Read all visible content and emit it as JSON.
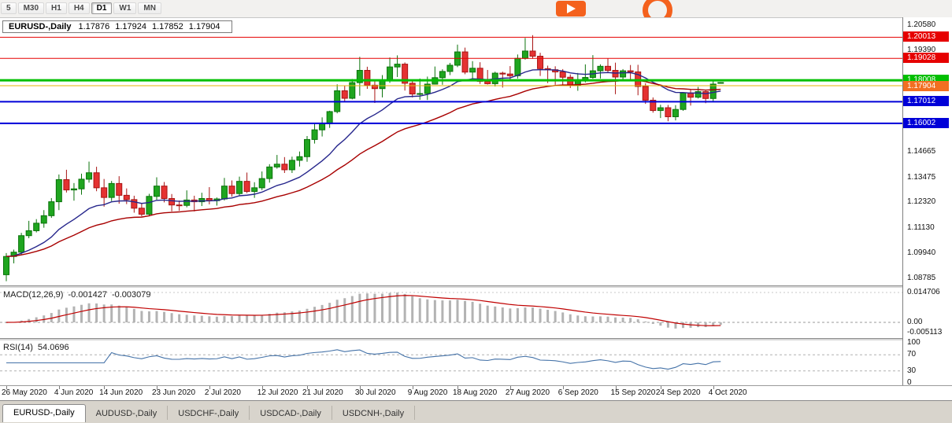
{
  "toolbar": {
    "timeframes": [
      {
        "label": "5",
        "active": false
      },
      {
        "label": "M30",
        "active": false
      },
      {
        "label": "H1",
        "active": false
      },
      {
        "label": "H4",
        "active": false
      },
      {
        "label": "D1",
        "active": true
      },
      {
        "label": "W1",
        "active": false
      },
      {
        "label": "MN",
        "active": false
      }
    ]
  },
  "tabs": [
    {
      "label": "EURUSD-,Daily",
      "active": true
    },
    {
      "label": "AUDUSD-,Daily",
      "active": false
    },
    {
      "label": "USDCHF-,Daily",
      "active": false
    },
    {
      "label": "USDCAD-,Daily",
      "active": false
    },
    {
      "label": "USDCNH-,Daily",
      "active": false
    }
  ],
  "chart_data": {
    "type": "candlestick",
    "symbol_title": "EURUSD-,Daily",
    "info": {
      "open": "1.17876",
      "high": "1.17924",
      "low": "1.17852",
      "close": "1.17904"
    },
    "colors": {
      "candle_up": "#1fa51f",
      "candle_up_dark": "#0b730b",
      "candle_down": "#e53232",
      "candle_down_dark": "#a81414",
      "ma_fast": "#26268c",
      "ma_slow": "#a80000",
      "resistance": "#e60000",
      "support": "#0000d8",
      "pivot": "#00bf00",
      "bid_line": "#e3b505",
      "bid_tag": "#f26f21",
      "macd_hist": "#b3b3b3",
      "macd_signal": "#c00000",
      "rsi_line": "#4472a8"
    },
    "x_labels": [
      "26 May 2020",
      "4 Jun 2020",
      "14 Jun 2020",
      "23 Jun 2020",
      "2 Jul 2020",
      "12 Jul 2020",
      "21 Jul 2020",
      "30 Jul 2020",
      "9 Aug 2020",
      "18 Aug 2020",
      "27 Aug 2020",
      "6 Sep 2020",
      "15 Sep 2020",
      "24 Sep 2020",
      "4 Oct 2020"
    ],
    "price_axis_labels": [
      {
        "text": "1.20580",
        "price": 1.2058
      },
      {
        "text": "1.19390",
        "price": 1.1939
      },
      {
        "text": "1.14665",
        "price": 1.14665
      },
      {
        "text": "1.13475",
        "price": 1.13475
      },
      {
        "text": "1.12320",
        "price": 1.1232
      },
      {
        "text": "1.11130",
        "price": 1.1113
      },
      {
        "text": "1.09940",
        "price": 1.0994
      },
      {
        "text": "1.08785",
        "price": 1.08785
      }
    ],
    "levels": [
      {
        "name": "resistance-1",
        "label": "1.20013",
        "price": 1.20013,
        "color": "#e60000",
        "width": 1
      },
      {
        "name": "resistance-2",
        "label": "1.19028",
        "price": 1.19028,
        "color": "#e60000",
        "width": 1
      },
      {
        "name": "pivot",
        "label": "1.18008",
        "price": 1.18008,
        "color": "#00bf00",
        "width": 3
      },
      {
        "name": "support-1",
        "label": "1.17012",
        "price": 1.17012,
        "color": "#0000d8",
        "width": 2
      },
      {
        "name": "support-2",
        "label": "1.16002",
        "price": 1.16002,
        "color": "#0000d8",
        "width": 2
      }
    ],
    "bid": {
      "label": "1.17904",
      "price": 1.17904
    },
    "moving_averages": [
      {
        "name": "ma-fast",
        "period": 14,
        "color": "#26268c"
      },
      {
        "name": "ma-slow",
        "period": 30,
        "color": "#a80000"
      }
    ],
    "macd": {
      "label": "MACD(12,26,9)",
      "main_text": "-0.001427",
      "signal_text": "-0.003079",
      "axis": [
        {
          "text": "0.014706",
          "value": 0.014706
        },
        {
          "text": "0.00",
          "value": 0
        },
        {
          "text": "-0.005113",
          "value": -0.005113
        }
      ]
    },
    "rsi": {
      "label": "RSI(14)",
      "value_text": "54.0696",
      "levels": [
        70,
        30
      ],
      "axis": [
        {
          "text": "100",
          "value": 100
        },
        {
          "text": "70",
          "value": 70
        },
        {
          "text": "30",
          "value": 30
        },
        {
          "text": "0",
          "value": 0
        }
      ]
    },
    "candles": [
      [
        1.0895,
        1.0996,
        1.0865,
        1.098
      ],
      [
        1.098,
        1.1012,
        1.0948,
        1.1
      ],
      [
        1.1,
        1.109,
        1.0988,
        1.1077
      ],
      [
        1.1077,
        1.1146,
        1.1065,
        1.11
      ],
      [
        1.11,
        1.1154,
        1.1092,
        1.1135
      ],
      [
        1.1135,
        1.1196,
        1.1114,
        1.117
      ],
      [
        1.117,
        1.1252,
        1.116,
        1.1235
      ],
      [
        1.1235,
        1.1362,
        1.1196,
        1.1338
      ],
      [
        1.1338,
        1.1384,
        1.1278,
        1.129
      ],
      [
        1.129,
        1.1322,
        1.124,
        1.1295
      ],
      [
        1.1295,
        1.1366,
        1.1268,
        1.134
      ],
      [
        1.134,
        1.1422,
        1.1324,
        1.137
      ],
      [
        1.137,
        1.1398,
        1.1284,
        1.13
      ],
      [
        1.13,
        1.1341,
        1.1212,
        1.1255
      ],
      [
        1.1255,
        1.1332,
        1.1238,
        1.132
      ],
      [
        1.132,
        1.1354,
        1.1226,
        1.1265
      ],
      [
        1.1265,
        1.1297,
        1.1224,
        1.1245
      ],
      [
        1.1245,
        1.1263,
        1.1184,
        1.1205
      ],
      [
        1.1205,
        1.1226,
        1.1167,
        1.1177
      ],
      [
        1.1177,
        1.1272,
        1.1167,
        1.126
      ],
      [
        1.126,
        1.1349,
        1.1244,
        1.1308
      ],
      [
        1.1308,
        1.1327,
        1.1232,
        1.125
      ],
      [
        1.125,
        1.1271,
        1.119,
        1.122
      ],
      [
        1.122,
        1.1241,
        1.1193,
        1.1218
      ],
      [
        1.1218,
        1.1288,
        1.1209,
        1.1243
      ],
      [
        1.1243,
        1.1263,
        1.119,
        1.1235
      ],
      [
        1.1235,
        1.1277,
        1.1215,
        1.125
      ],
      [
        1.125,
        1.1303,
        1.1223,
        1.124
      ],
      [
        1.124,
        1.1255,
        1.1217,
        1.1248
      ],
      [
        1.1248,
        1.1346,
        1.1241,
        1.1308
      ],
      [
        1.1308,
        1.1334,
        1.1258,
        1.1273
      ],
      [
        1.1273,
        1.1352,
        1.1264,
        1.133
      ],
      [
        1.133,
        1.1371,
        1.1275,
        1.1283
      ],
      [
        1.1283,
        1.1326,
        1.1253,
        1.13
      ],
      [
        1.13,
        1.1376,
        1.1289,
        1.1343
      ],
      [
        1.1343,
        1.141,
        1.1324,
        1.1397
      ],
      [
        1.1397,
        1.1453,
        1.1389,
        1.141
      ],
      [
        1.141,
        1.1443,
        1.1369,
        1.1384
      ],
      [
        1.1384,
        1.1445,
        1.1369,
        1.1428
      ],
      [
        1.1428,
        1.1469,
        1.1399,
        1.1445
      ],
      [
        1.1445,
        1.1541,
        1.1421,
        1.1525
      ],
      [
        1.1525,
        1.1602,
        1.1506,
        1.157
      ],
      [
        1.157,
        1.1628,
        1.1539,
        1.1598
      ],
      [
        1.1598,
        1.1659,
        1.1579,
        1.1655
      ],
      [
        1.1655,
        1.1782,
        1.1647,
        1.1752
      ],
      [
        1.1752,
        1.1774,
        1.1699,
        1.1717
      ],
      [
        1.1717,
        1.1807,
        1.1712,
        1.179
      ],
      [
        1.179,
        1.191,
        1.1729,
        1.1847
      ],
      [
        1.1847,
        1.1864,
        1.1761,
        1.1778
      ],
      [
        1.1778,
        1.1798,
        1.1695,
        1.1762
      ],
      [
        1.1762,
        1.1825,
        1.1721,
        1.1802
      ],
      [
        1.1802,
        1.1907,
        1.1789,
        1.1863
      ],
      [
        1.1863,
        1.1917,
        1.1816,
        1.1876
      ],
      [
        1.1876,
        1.1884,
        1.1753,
        1.1787
      ],
      [
        1.1787,
        1.1799,
        1.1721,
        1.1737
      ],
      [
        1.1737,
        1.1809,
        1.171,
        1.1739
      ],
      [
        1.1739,
        1.1818,
        1.1709,
        1.1783
      ],
      [
        1.1783,
        1.1865,
        1.1781,
        1.1813
      ],
      [
        1.1813,
        1.1852,
        1.178,
        1.1842
      ],
      [
        1.1842,
        1.1882,
        1.1825,
        1.1871
      ],
      [
        1.1871,
        1.1967,
        1.1862,
        1.1933
      ],
      [
        1.1933,
        1.1953,
        1.1829,
        1.1839
      ],
      [
        1.1839,
        1.189,
        1.1804,
        1.1857
      ],
      [
        1.1857,
        1.1885,
        1.1784,
        1.1796
      ],
      [
        1.1796,
        1.1849,
        1.1781,
        1.1785
      ],
      [
        1.1785,
        1.1841,
        1.1772,
        1.1834
      ],
      [
        1.1834,
        1.1841,
        1.1767,
        1.183
      ],
      [
        1.183,
        1.1867,
        1.1799,
        1.1822
      ],
      [
        1.1822,
        1.1921,
        1.1809,
        1.1903
      ],
      [
        1.1903,
        1.1998,
        1.1897,
        1.1937
      ],
      [
        1.1937,
        1.2011,
        1.1901,
        1.1913
      ],
      [
        1.1913,
        1.1929,
        1.1821,
        1.1855
      ],
      [
        1.1855,
        1.1869,
        1.1788,
        1.185
      ],
      [
        1.185,
        1.1866,
        1.178,
        1.184
      ],
      [
        1.184,
        1.1853,
        1.178,
        1.1815
      ],
      [
        1.1815,
        1.1828,
        1.1765,
        1.1779
      ],
      [
        1.1779,
        1.1835,
        1.1752,
        1.1801
      ],
      [
        1.1801,
        1.1875,
        1.1791,
        1.1814
      ],
      [
        1.1814,
        1.1918,
        1.1808,
        1.1845
      ],
      [
        1.1845,
        1.1875,
        1.1809,
        1.1866
      ],
      [
        1.1866,
        1.1902,
        1.1837,
        1.1847
      ],
      [
        1.1847,
        1.1883,
        1.1736,
        1.1816
      ],
      [
        1.1816,
        1.1853,
        1.1796,
        1.1845
      ],
      [
        1.1845,
        1.1872,
        1.1799,
        1.184
      ],
      [
        1.184,
        1.1873,
        1.1731,
        1.1772
      ],
      [
        1.1772,
        1.1787,
        1.1691,
        1.1708
      ],
      [
        1.1708,
        1.1721,
        1.165,
        1.166
      ],
      [
        1.166,
        1.1687,
        1.1625,
        1.1673
      ],
      [
        1.1673,
        1.1686,
        1.161,
        1.1631
      ],
      [
        1.1631,
        1.1685,
        1.1614,
        1.1665
      ],
      [
        1.1665,
        1.1746,
        1.1659,
        1.1742
      ],
      [
        1.1742,
        1.1756,
        1.1683,
        1.1722
      ],
      [
        1.1722,
        1.177,
        1.1716,
        1.1748
      ],
      [
        1.1748,
        1.1753,
        1.1694,
        1.1716
      ],
      [
        1.1716,
        1.1798,
        1.1704,
        1.1783
      ],
      [
        1.17876,
        1.17924,
        1.17852,
        1.17904
      ]
    ]
  }
}
